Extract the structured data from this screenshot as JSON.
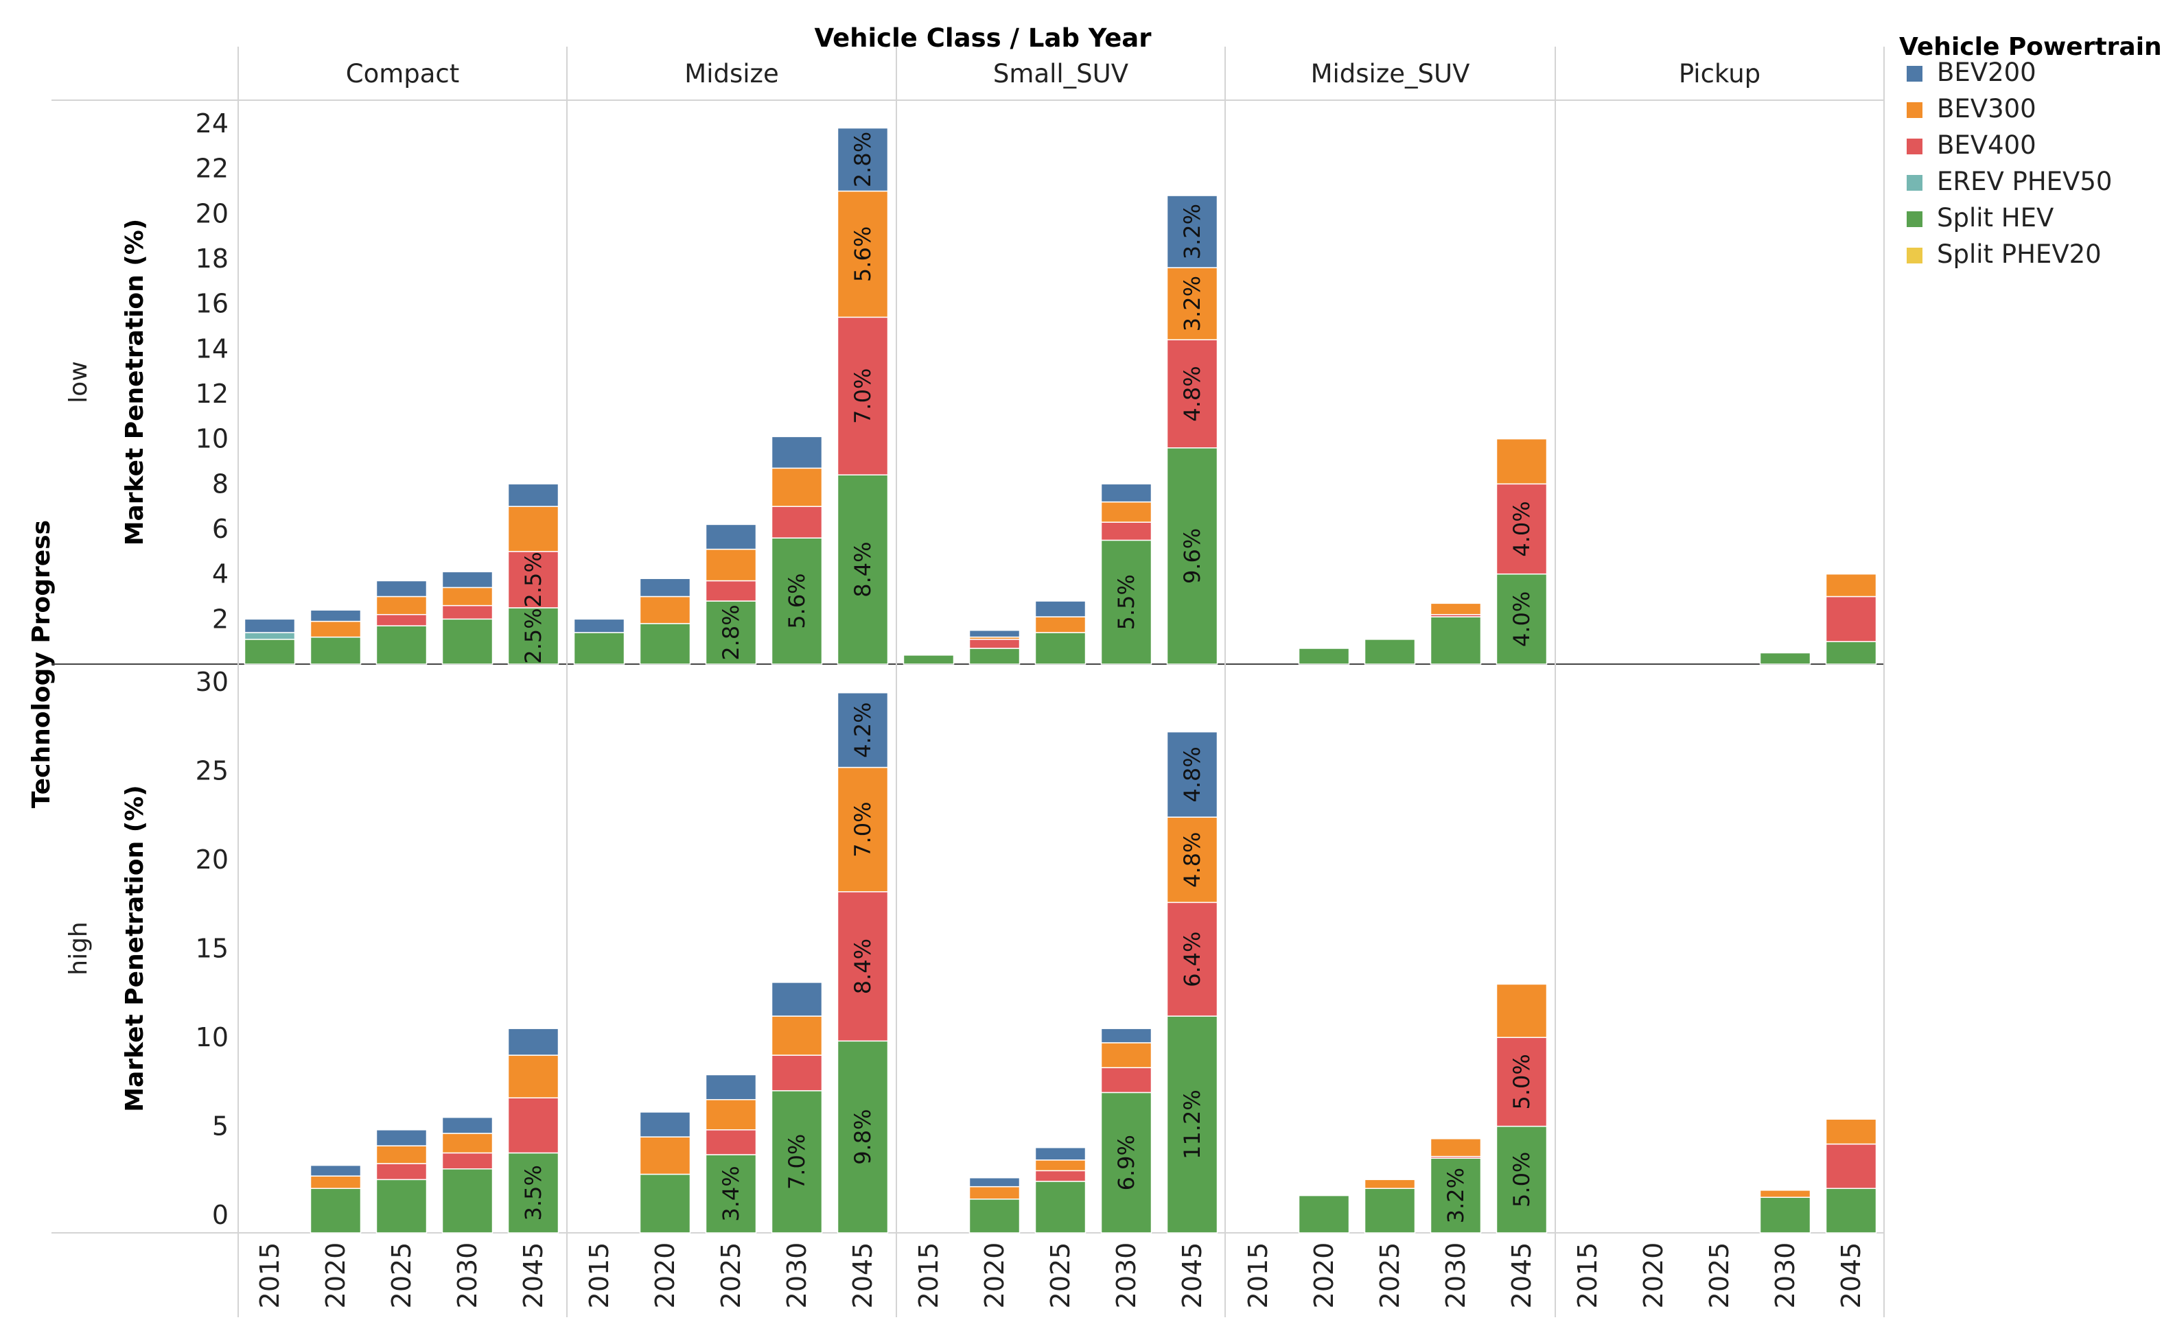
{
  "chart_data": {
    "type": "bar",
    "stacked": true,
    "title": "Vehicle Class  /  Lab Year",
    "columns_label": "Vehicle Class  /  Lab Year",
    "rows_label": "Technology Progress",
    "ylabel": "Market Penetration (%)",
    "legend_title": "Vehicle Powertrain",
    "legend_position": "right",
    "classes": [
      "Compact",
      "Midsize",
      "Small_SUV",
      "Midsize_SUV",
      "Pickup"
    ],
    "years": [
      "2015",
      "2020",
      "2025",
      "2030",
      "2045"
    ],
    "series": [
      {
        "name": "BEV200",
        "color": "#4e79a7"
      },
      {
        "name": "BEV300",
        "color": "#f28e2b"
      },
      {
        "name": "BEV400",
        "color": "#e15759"
      },
      {
        "name": "EREV PHEV50",
        "color": "#76b7b2"
      },
      {
        "name": "Split HEV",
        "color": "#59a14f"
      },
      {
        "name": "Split PHEV20",
        "color": "#edc948"
      }
    ],
    "stack_order": [
      "Split PHEV20",
      "Split HEV",
      "EREV PHEV50",
      "BEV400",
      "BEV300",
      "BEV200"
    ],
    "rows": [
      {
        "label": "low",
        "ylim": [
          0,
          24
        ],
        "ticks": [
          "2",
          "4",
          "6",
          "8",
          "10",
          "12",
          "14",
          "16",
          "18",
          "20",
          "22",
          "24"
        ],
        "tick_values": [
          2,
          4,
          6,
          8,
          10,
          12,
          14,
          16,
          18,
          20,
          22,
          24
        ],
        "values": {
          "Compact": [
            {
              "Split HEV": 1.1,
              "EREV PHEV50": 0.3,
              "BEV200": 0.6
            },
            {
              "Split HEV": 1.2,
              "BEV300": 0.7,
              "BEV200": 0.5
            },
            {
              "Split HEV": 1.7,
              "BEV400": 0.5,
              "BEV300": 0.8,
              "BEV200": 0.7
            },
            {
              "Split HEV": 2.0,
              "BEV400": 0.6,
              "BEV300": 0.8,
              "BEV200": 0.7
            },
            {
              "Split HEV": 2.5,
              "BEV400": 2.5,
              "BEV300": 2.0,
              "BEV200": 1.0
            }
          ],
          "Midsize": [
            {
              "Split HEV": 1.4,
              "BEV200": 0.6
            },
            {
              "Split HEV": 1.8,
              "BEV300": 1.2,
              "BEV200": 0.8
            },
            {
              "Split HEV": 2.8,
              "BEV400": 0.9,
              "BEV300": 1.4,
              "BEV200": 1.1
            },
            {
              "Split HEV": 5.6,
              "BEV400": 1.4,
              "BEV300": 1.7,
              "BEV200": 1.4
            },
            {
              "Split HEV": 8.4,
              "BEV400": 7.0,
              "BEV300": 5.6,
              "BEV200": 2.8
            }
          ],
          "Small_SUV": [
            {
              "Split HEV": 0.4
            },
            {
              "Split HEV": 0.7,
              "BEV400": 0.4,
              "BEV300": 0.1,
              "BEV200": 0.3
            },
            {
              "Split HEV": 1.4,
              "BEV300": 0.7,
              "BEV200": 0.7
            },
            {
              "Split HEV": 5.5,
              "BEV400": 0.8,
              "BEV300": 0.9,
              "BEV200": 0.8
            },
            {
              "Split HEV": 9.6,
              "BEV400": 4.8,
              "BEV300": 3.2,
              "BEV200": 3.2
            }
          ],
          "Midsize_SUV": [
            {},
            {
              "Split HEV": 0.7
            },
            {
              "Split HEV": 1.1
            },
            {
              "Split HEV": 2.1,
              "BEV400": 0.1,
              "BEV300": 0.5
            },
            {
              "Split HEV": 4.0,
              "BEV400": 4.0,
              "BEV300": 2.0
            }
          ],
          "Pickup": [
            {},
            {},
            {},
            {
              "Split HEV": 0.5
            },
            {
              "Split HEV": 1.0,
              "BEV400": 2.0,
              "BEV300": 1.0
            }
          ]
        }
      },
      {
        "label": "high",
        "ylim": [
          -1,
          29.7
        ],
        "ticks": [
          "0",
          "5",
          "10",
          "15",
          "20",
          "25",
          "30"
        ],
        "tick_values": [
          0,
          5,
          10,
          15,
          20,
          25,
          30
        ],
        "values": {
          "Compact": [
            {},
            {
              "Split HEV": 1.5,
              "BEV300": 0.7,
              "BEV200": 0.6
            },
            {
              "Split HEV": 2.0,
              "BEV400": 0.9,
              "BEV300": 1.0,
              "BEV200": 0.9
            },
            {
              "Split HEV": 2.6,
              "BEV400": 0.9,
              "BEV300": 1.1,
              "BEV200": 0.9
            },
            {
              "Split HEV": 3.5,
              "BEV400": 3.1,
              "BEV300": 2.4,
              "BEV200": 1.5
            }
          ],
          "Midsize": [
            {},
            {
              "Split HEV": 2.3,
              "BEV300": 2.1,
              "BEV200": 1.4
            },
            {
              "Split HEV": 3.4,
              "BEV400": 1.4,
              "BEV300": 1.7,
              "BEV200": 1.4
            },
            {
              "Split HEV": 7.0,
              "BEV400": 2.0,
              "BEV300": 2.2,
              "BEV200": 1.9
            },
            {
              "Split HEV": 9.8,
              "BEV400": 8.4,
              "BEV300": 7.0,
              "BEV200": 4.2
            }
          ],
          "Small_SUV": [
            {},
            {
              "Split HEV": 0.9,
              "BEV300": 0.7,
              "BEV200": 0.5
            },
            {
              "Split HEV": 1.9,
              "BEV400": 0.6,
              "BEV300": 0.6,
              "BEV200": 0.7
            },
            {
              "Split HEV": 6.9,
              "BEV400": 1.4,
              "BEV300": 1.4,
              "BEV200": 0.8
            },
            {
              "Split HEV": 11.2,
              "BEV400": 6.4,
              "BEV300": 4.8,
              "BEV200": 4.8
            }
          ],
          "Midsize_SUV": [
            {},
            {
              "Split HEV": 1.1
            },
            {
              "Split HEV": 1.5,
              "BEV300": 0.5
            },
            {
              "Split HEV": 3.2,
              "BEV400": 0.1,
              "BEV300": 1.0
            },
            {
              "Split HEV": 5.0,
              "BEV400": 5.0,
              "BEV300": 3.0
            }
          ],
          "Pickup": [
            {},
            {},
            {},
            {
              "Split HEV": 1.0,
              "BEV300": 0.4
            },
            {
              "Split HEV": 1.5,
              "BEV400": 2.5,
              "BEV300": 1.4
            }
          ]
        }
      }
    ],
    "data_labels": [
      {
        "row": "low",
        "class": "Compact",
        "year": "2045",
        "series": "Split HEV",
        "text": "2.5%"
      },
      {
        "row": "low",
        "class": "Compact",
        "year": "2045",
        "series": "BEV400",
        "text": "2.5%"
      },
      {
        "row": "low",
        "class": "Midsize",
        "year": "2025",
        "series": "Split HEV",
        "text": "2.8%"
      },
      {
        "row": "low",
        "class": "Midsize",
        "year": "2030",
        "series": "Split HEV",
        "text": "5.6%"
      },
      {
        "row": "low",
        "class": "Midsize",
        "year": "2045",
        "series": "Split HEV",
        "text": "8.4%"
      },
      {
        "row": "low",
        "class": "Midsize",
        "year": "2045",
        "series": "BEV400",
        "text": "7.0%"
      },
      {
        "row": "low",
        "class": "Midsize",
        "year": "2045",
        "series": "BEV300",
        "text": "5.6%"
      },
      {
        "row": "low",
        "class": "Midsize",
        "year": "2045",
        "series": "BEV200",
        "text": "2.8%"
      },
      {
        "row": "low",
        "class": "Small_SUV",
        "year": "2030",
        "series": "Split HEV",
        "text": "5.5%"
      },
      {
        "row": "low",
        "class": "Small_SUV",
        "year": "2045",
        "series": "Split HEV",
        "text": "9.6%"
      },
      {
        "row": "low",
        "class": "Small_SUV",
        "year": "2045",
        "series": "BEV400",
        "text": "4.8%"
      },
      {
        "row": "low",
        "class": "Small_SUV",
        "year": "2045",
        "series": "BEV300",
        "text": "3.2%"
      },
      {
        "row": "low",
        "class": "Small_SUV",
        "year": "2045",
        "series": "BEV200",
        "text": "3.2%"
      },
      {
        "row": "low",
        "class": "Midsize_SUV",
        "year": "2045",
        "series": "Split HEV",
        "text": "4.0%"
      },
      {
        "row": "low",
        "class": "Midsize_SUV",
        "year": "2045",
        "series": "BEV400",
        "text": "4.0%"
      },
      {
        "row": "high",
        "class": "Compact",
        "year": "2045",
        "series": "Split HEV",
        "text": "3.5%"
      },
      {
        "row": "high",
        "class": "Midsize",
        "year": "2025",
        "series": "Split HEV",
        "text": "3.4%"
      },
      {
        "row": "high",
        "class": "Midsize",
        "year": "2030",
        "series": "Split HEV",
        "text": "7.0%"
      },
      {
        "row": "high",
        "class": "Midsize",
        "year": "2045",
        "series": "Split HEV",
        "text": "9.8%"
      },
      {
        "row": "high",
        "class": "Midsize",
        "year": "2045",
        "series": "BEV400",
        "text": "8.4%"
      },
      {
        "row": "high",
        "class": "Midsize",
        "year": "2045",
        "series": "BEV300",
        "text": "7.0%"
      },
      {
        "row": "high",
        "class": "Midsize",
        "year": "2045",
        "series": "BEV200",
        "text": "4.2%"
      },
      {
        "row": "high",
        "class": "Small_SUV",
        "year": "2030",
        "series": "Split HEV",
        "text": "6.9%"
      },
      {
        "row": "high",
        "class": "Small_SUV",
        "year": "2045",
        "series": "Split HEV",
        "text": "11.2%"
      },
      {
        "row": "high",
        "class": "Small_SUV",
        "year": "2045",
        "series": "BEV400",
        "text": "6.4%"
      },
      {
        "row": "high",
        "class": "Small_SUV",
        "year": "2045",
        "series": "BEV300",
        "text": "4.8%"
      },
      {
        "row": "high",
        "class": "Small_SUV",
        "year": "2045",
        "series": "BEV200",
        "text": "4.8%"
      },
      {
        "row": "high",
        "class": "Midsize_SUV",
        "year": "2030",
        "series": "Split HEV",
        "text": "3.2%"
      },
      {
        "row": "high",
        "class": "Midsize_SUV",
        "year": "2045",
        "series": "Split HEV",
        "text": "5.0%"
      },
      {
        "row": "high",
        "class": "Midsize_SUV",
        "year": "2045",
        "series": "BEV400",
        "text": "5.0%"
      }
    ]
  }
}
